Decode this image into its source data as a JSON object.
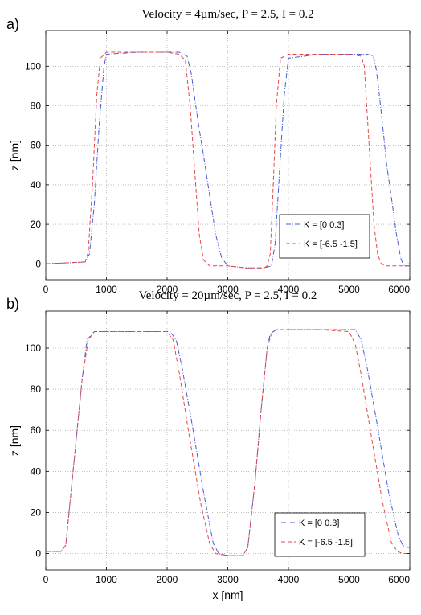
{
  "chart_data": [
    {
      "type": "line",
      "panel": "a)",
      "title": "Velocity = 4µm/sec, P = 2.5, I = 0.2",
      "xlabel": "",
      "ylabel": "z [nm]",
      "xlim": [
        0,
        6000
      ],
      "ylim": [
        -8,
        118
      ],
      "xticks": [
        0,
        1000,
        2000,
        3000,
        4000,
        5000,
        6000
      ],
      "yticks": [
        0,
        20,
        40,
        60,
        80,
        100
      ],
      "grid": true,
      "legend_position": "lower-right",
      "series": [
        {
          "name": "K = [0  0.3]",
          "color": "#4a5bd6",
          "x": [
            0,
            650,
            720,
            800,
            880,
            960,
            1000,
            1500,
            2000,
            2200,
            2330,
            2400,
            2450,
            2520,
            2600,
            2700,
            2800,
            2900,
            3000,
            3300,
            3600,
            3720,
            3780,
            3850,
            3930,
            4000,
            4500,
            5000,
            5300,
            5400,
            5450,
            5500,
            5560,
            5620,
            5700,
            5780,
            5850,
            5900,
            6000
          ],
          "y": [
            0,
            1,
            5,
            30,
            70,
            100,
            106,
            107,
            107,
            107,
            105,
            96,
            85,
            70,
            55,
            35,
            15,
            3,
            -1,
            -2,
            -2,
            -1,
            10,
            45,
            85,
            104,
            106,
            106,
            106,
            105,
            98,
            85,
            68,
            50,
            33,
            15,
            3,
            -1,
            -1
          ]
        },
        {
          "name": "K = [-6.5 -1.5]",
          "color": "#e8474a",
          "x": [
            0,
            650,
            700,
            770,
            840,
            900,
            1000,
            1500,
            2000,
            2200,
            2300,
            2380,
            2460,
            2530,
            2600,
            2700,
            3000,
            3300,
            3600,
            3650,
            3700,
            3750,
            3800,
            3870,
            4000,
            4500,
            5000,
            5200,
            5250,
            5290,
            5350,
            5410,
            5470,
            5530,
            5600,
            6000
          ],
          "y": [
            0,
            1,
            6,
            40,
            85,
            104,
            107,
            107,
            107,
            106,
            103,
            80,
            45,
            15,
            2,
            -1,
            -1,
            -2,
            -2,
            -1,
            5,
            40,
            80,
            104,
            106,
            106,
            106,
            105,
            100,
            80,
            50,
            20,
            5,
            0,
            -1,
            -1
          ]
        }
      ]
    },
    {
      "type": "line",
      "panel": "b)",
      "title": "Velocity = 20µm/sec, P = 2.5, I = 0.2",
      "xlabel": "x [nm]",
      "ylabel": "z [nm]",
      "xlim": [
        0,
        6000
      ],
      "ylim": [
        -8,
        118
      ],
      "xticks": [
        0,
        1000,
        2000,
        3000,
        4000,
        5000,
        6000
      ],
      "yticks": [
        0,
        20,
        40,
        60,
        80,
        100
      ],
      "grid": true,
      "legend_position": "lower-right",
      "series": [
        {
          "name": "K = [0  0.3]",
          "color": "#4a5bd6",
          "x": [
            0,
            250,
            330,
            400,
            500,
            600,
            680,
            800,
            1500,
            2050,
            2150,
            2250,
            2400,
            2600,
            2760,
            2850,
            3000,
            3250,
            3330,
            3450,
            3550,
            3650,
            3700,
            3800,
            4500,
            5100,
            5200,
            5300,
            5450,
            5650,
            5800,
            5880,
            5950,
            6000
          ],
          "y": [
            1,
            1,
            4,
            25,
            55,
            85,
            104,
            108,
            108,
            108,
            104,
            90,
            65,
            30,
            5,
            0,
            -1,
            -1,
            3,
            35,
            70,
            100,
            107,
            109,
            109,
            109,
            104,
            90,
            65,
            30,
            10,
            4,
            3,
            3
          ]
        },
        {
          "name": "K = [-6.5 -1.5]",
          "color": "#e8474a",
          "x": [
            0,
            250,
            330,
            400,
            500,
            600,
            700,
            800,
            1500,
            2000,
            2100,
            2200,
            2350,
            2550,
            2700,
            2800,
            3000,
            3250,
            3330,
            3450,
            3550,
            3650,
            3720,
            3800,
            4500,
            5000,
            5100,
            5200,
            5350,
            5550,
            5700,
            5800,
            5880,
            6000
          ],
          "y": [
            1,
            1,
            4,
            25,
            55,
            85,
            104,
            108,
            108,
            108,
            104,
            88,
            60,
            25,
            5,
            0,
            -1,
            -1,
            3,
            35,
            70,
            100,
            107,
            109,
            109,
            108,
            102,
            87,
            60,
            25,
            5,
            1,
            0,
            0
          ]
        }
      ]
    }
  ]
}
